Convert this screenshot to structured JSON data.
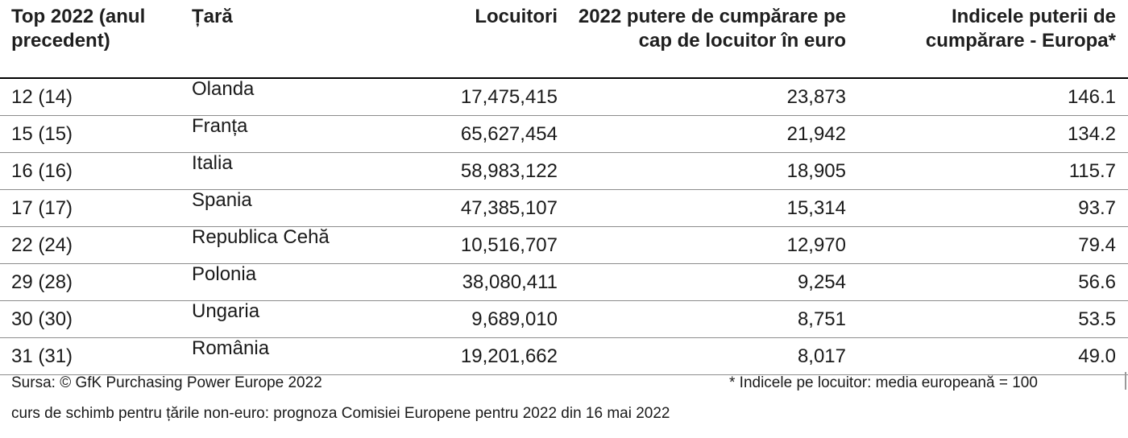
{
  "table": {
    "headers": {
      "rank": "Top 2022 (anul precedent)",
      "country": "Țară",
      "population": "Locuitori",
      "power": "2022 putere de cumpărare pe cap de locuitor în euro",
      "index": "Indicele puterii de cumpărare - Europa*"
    },
    "rows": [
      {
        "rank": "12 (14)",
        "country": "Olanda",
        "population": "17,475,415",
        "power": "23,873",
        "index": "146.1"
      },
      {
        "rank": "15 (15)",
        "country": "Franța",
        "population": "65,627,454",
        "power": "21,942",
        "index": "134.2"
      },
      {
        "rank": "16 (16)",
        "country": "Italia",
        "population": "58,983,122",
        "power": "18,905",
        "index": "115.7"
      },
      {
        "rank": "17 (17)",
        "country": "Spania",
        "population": "47,385,107",
        "power": "15,314",
        "index": "93.7"
      },
      {
        "rank": "22 (24)",
        "country": "Republica Cehă",
        "population": "10,516,707",
        "power": "12,970",
        "index": "79.4"
      },
      {
        "rank": "29 (28)",
        "country": "Polonia",
        "population": "38,080,411",
        "power": "9,254",
        "index": "56.6"
      },
      {
        "rank": "30 (30)",
        "country": "Ungaria",
        "population": "9,689,010",
        "power": "8,751",
        "index": "53.5"
      },
      {
        "rank": "31 (31)",
        "country": "România",
        "population": "19,201,662",
        "power": "8,017",
        "index": "49.0"
      }
    ]
  },
  "footer": {
    "source": "Sursa: © GfK Purchasing Power Europe 2022",
    "note": "* Indicele pe locuitor: media europeană = 100",
    "exchange_rate": "curs de schimb pentru țările non-euro: prognoza Comisiei Europene pentru 2022 din 16 mai 2022"
  }
}
